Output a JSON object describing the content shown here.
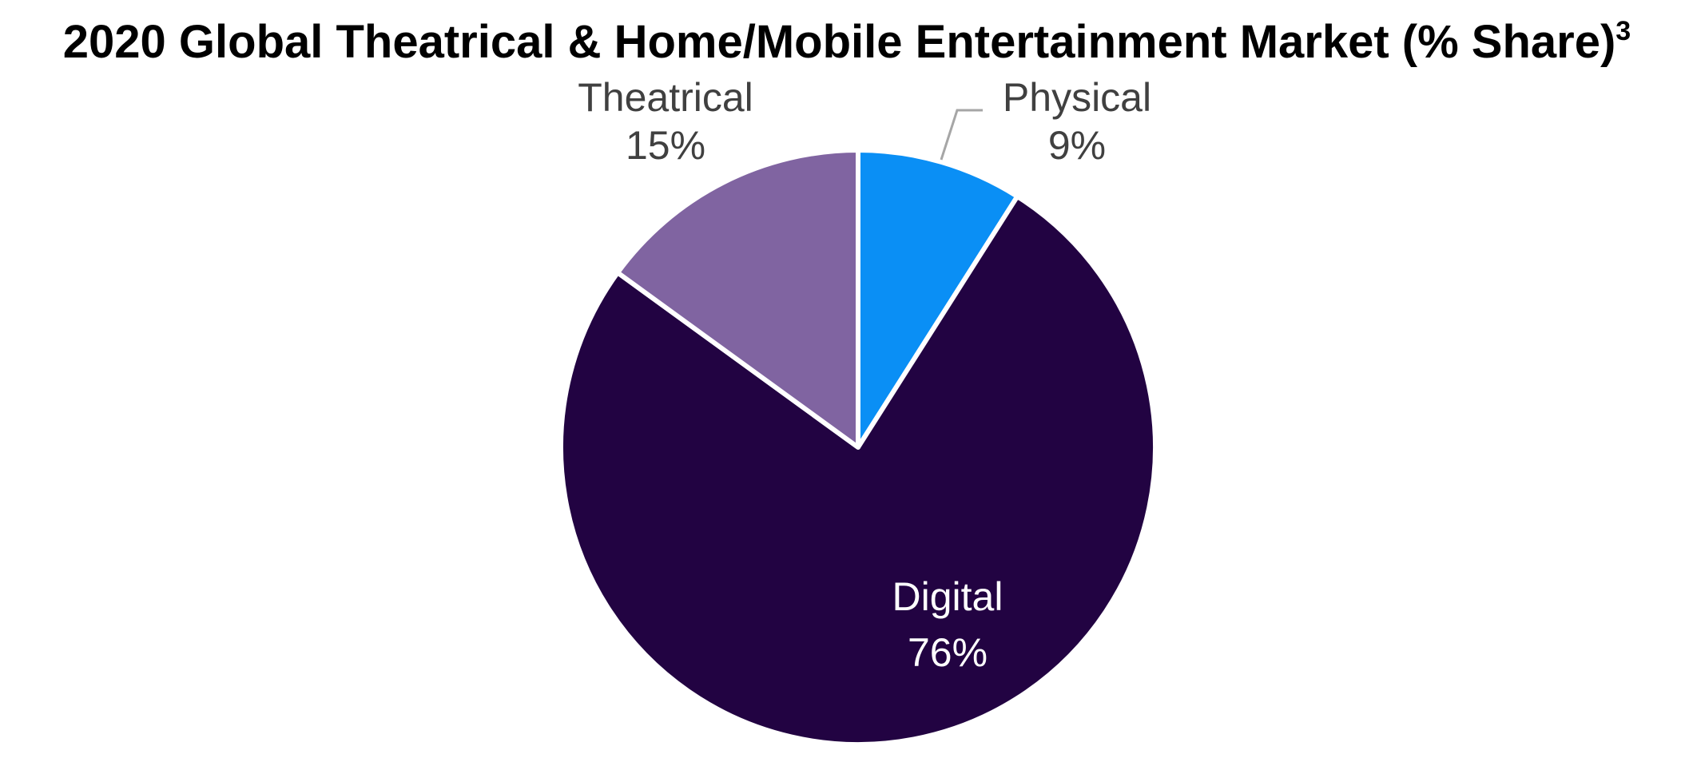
{
  "chart_data": {
    "type": "pie",
    "title": "2020 Global Theatrical & Home/Mobile Entertainment Market (% Share)",
    "title_superscript": "3",
    "slices": [
      {
        "name": "Physical",
        "value": 9,
        "value_label": "9%",
        "color": "#0a8ff5",
        "label_color": "#404040"
      },
      {
        "name": "Digital",
        "value": 76,
        "value_label": "76%",
        "color": "#220342",
        "label_color": "#ffffff"
      },
      {
        "name": "Theatrical",
        "value": 15,
        "value_label": "15%",
        "color": "#8064a1",
        "label_color": "#404040"
      }
    ],
    "start_angle_deg": 0,
    "direction": "clockwise",
    "slice_border_color": "#ffffff",
    "leader_line_color": "#a6a6a6"
  }
}
